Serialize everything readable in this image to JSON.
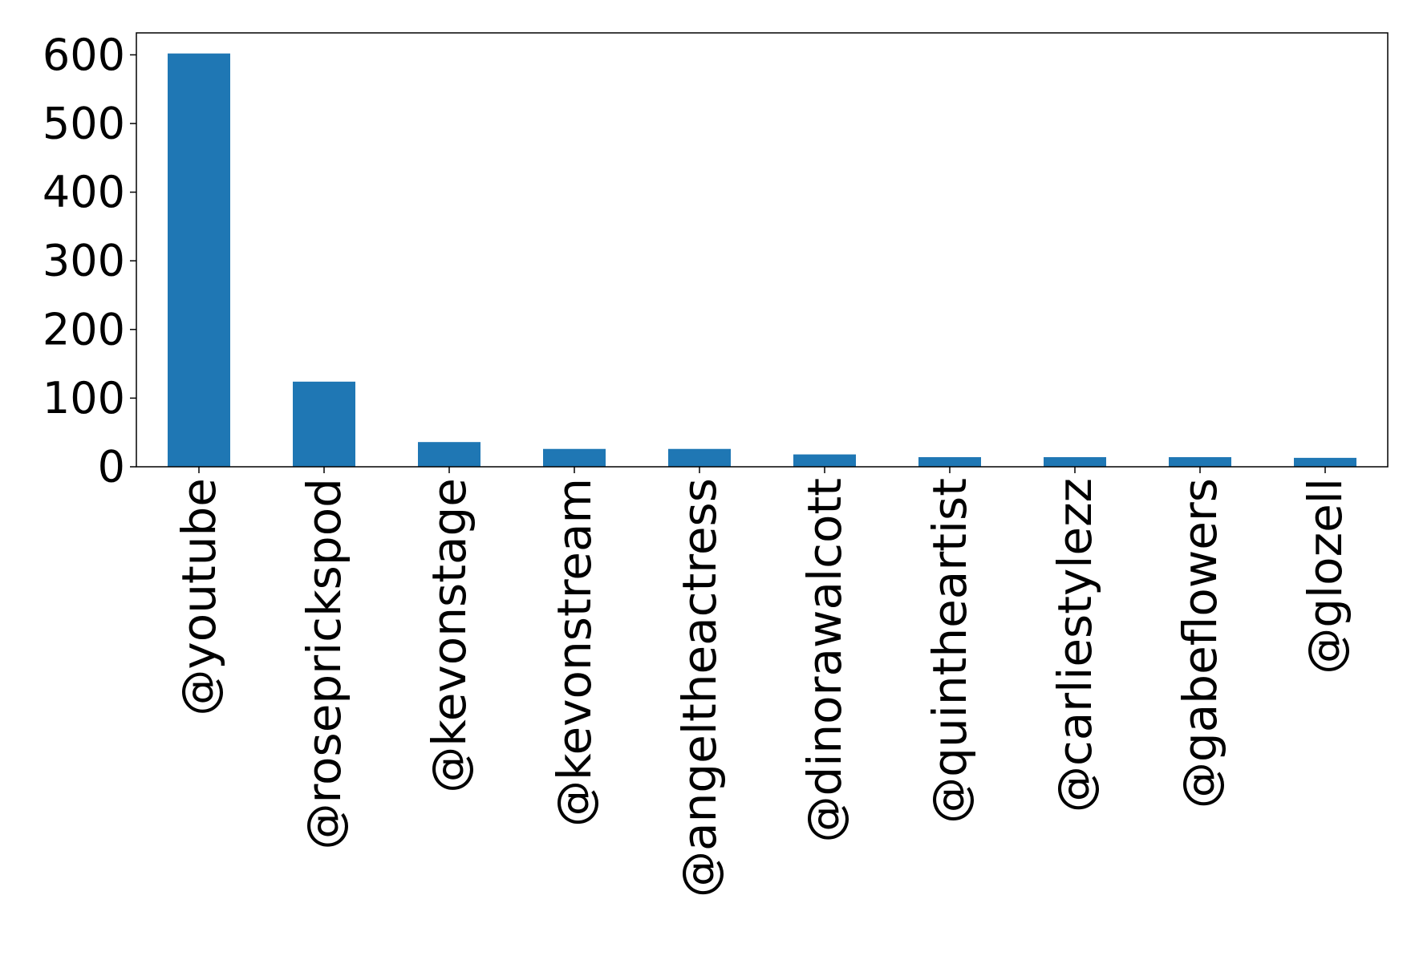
{
  "chart_data": {
    "type": "bar",
    "title": "",
    "xlabel": "",
    "ylabel": "",
    "categories": [
      "@youtube",
      "@roseprickspod",
      "@kevonstage",
      "@kevonstream",
      "@angeltheactress",
      "@dinorawalcott",
      "@quintheartist",
      "@carliestylezz",
      "@gabeflowers",
      "@glozell"
    ],
    "values": [
      602,
      124,
      36,
      26,
      26,
      18,
      14,
      14,
      14,
      13
    ],
    "ylim": [
      0,
      632
    ],
    "yticks": [
      0,
      100,
      200,
      300,
      400,
      500,
      600
    ],
    "ytick_labels": [
      "0",
      "100",
      "200",
      "300",
      "400",
      "500",
      "600"
    ],
    "bar_color": "#1f77b4",
    "grid": false,
    "legend": "none"
  }
}
